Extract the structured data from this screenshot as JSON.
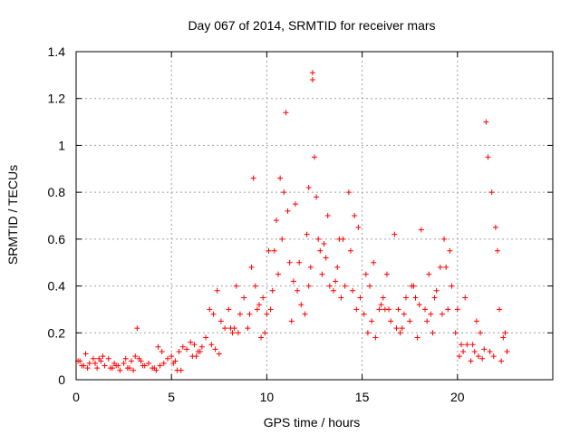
{
  "chart_data": {
    "type": "scatter",
    "title": "Day 067 of 2014, SRMTID for receiver mars",
    "xlabel": "GPS time / hours",
    "ylabel": "SRMTID / TECUs",
    "xlim": [
      0,
      25
    ],
    "ylim": [
      0,
      1.4
    ],
    "xticks": [
      0,
      5,
      10,
      15,
      20
    ],
    "yticks": [
      0,
      0.2,
      0.4,
      0.6,
      0.8,
      1,
      1.2,
      1.4
    ],
    "xtick_labels": [
      "0",
      "5",
      "10",
      "15",
      "20"
    ],
    "ytick_labels": [
      "0",
      "0.2",
      "0.4",
      "0.6",
      "0.8",
      "1",
      "1.2",
      "1.4"
    ],
    "grid": true,
    "marker": "+",
    "color": "#ff0000",
    "series": [
      {
        "name": "SRMTID",
        "x": [
          0.1,
          0.3,
          0.5,
          0.7,
          0.9,
          1.1,
          1.3,
          1.5,
          1.7,
          1.9,
          2.1,
          2.3,
          2.5,
          2.7,
          2.9,
          3.1,
          3.2,
          3.4,
          3.6,
          3.8,
          4.0,
          4.2,
          4.4,
          4.6,
          4.8,
          5.0,
          5.2,
          5.4,
          5.6,
          5.8,
          6.0,
          6.2,
          6.4,
          6.6,
          6.8,
          7.0,
          7.2,
          7.4,
          7.6,
          7.8,
          8.0,
          8.2,
          8.4,
          8.6,
          8.8,
          9.0,
          9.2,
          9.3,
          9.4,
          9.6,
          9.8,
          10.0,
          10.2,
          10.4,
          10.5,
          10.6,
          10.8,
          10.9,
          11.0,
          11.1,
          11.2,
          11.4,
          11.6,
          11.8,
          12.0,
          12.2,
          12.4,
          12.4,
          12.5,
          12.6,
          12.7,
          12.9,
          13.1,
          13.3,
          13.5,
          13.7,
          13.9,
          14.1,
          14.3,
          14.5,
          14.7,
          14.9,
          15.1,
          15.3,
          15.5,
          15.7,
          15.9,
          16.1,
          16.3,
          16.5,
          16.7,
          16.9,
          17.1,
          17.3,
          17.5,
          17.7,
          17.9,
          18.1,
          18.3,
          18.5,
          18.7,
          18.9,
          19.1,
          19.3,
          19.5,
          19.7,
          19.9,
          20.1,
          20.3,
          20.5,
          20.7,
          20.9,
          21.1,
          21.3,
          21.4,
          21.5,
          21.6,
          21.8,
          22.0,
          22.2,
          22.4,
          22.6,
          0.2,
          0.6,
          1.0,
          1.4,
          1.8,
          2.2,
          2.6,
          3.0,
          3.5,
          4.1,
          4.5,
          5.1,
          5.5,
          6.1,
          6.5,
          7.1,
          7.5,
          8.1,
          8.5,
          9.1,
          9.5,
          9.9,
          10.3,
          10.7,
          11.3,
          11.7,
          12.1,
          12.3,
          12.8,
          13.2,
          13.6,
          14.0,
          14.4,
          14.8,
          15.2,
          15.6,
          16.0,
          16.4,
          16.8,
          17.2,
          17.6,
          18.0,
          18.4,
          18.8,
          19.2,
          19.6,
          20.0,
          20.4,
          20.8,
          21.2,
          21.7,
          22.1,
          22.5,
          0.4,
          1.2,
          2.0,
          2.8,
          3.3,
          4.3,
          5.3,
          6.3,
          7.3,
          8.3,
          9.7,
          10.1,
          11.5,
          12.2,
          13.0,
          13.8,
          14.6,
          15.4,
          16.2,
          17.0,
          17.8,
          18.6,
          19.4,
          20.2,
          21.0,
          21.9,
          22.3
        ],
        "y": [
          0.08,
          0.06,
          0.11,
          0.07,
          0.09,
          0.05,
          0.08,
          0.06,
          0.09,
          0.05,
          0.06,
          0.04,
          0.07,
          0.05,
          0.08,
          0.1,
          0.22,
          0.08,
          0.06,
          0.07,
          0.05,
          0.04,
          0.06,
          0.07,
          0.09,
          0.1,
          0.08,
          0.12,
          0.14,
          0.13,
          0.16,
          0.15,
          0.12,
          0.14,
          0.18,
          0.3,
          0.28,
          0.38,
          0.25,
          0.22,
          0.3,
          0.2,
          0.4,
          0.28,
          0.35,
          0.22,
          0.48,
          0.86,
          0.4,
          0.32,
          0.35,
          0.28,
          0.3,
          0.55,
          0.68,
          0.45,
          0.6,
          0.8,
          1.14,
          0.72,
          0.5,
          0.42,
          0.38,
          0.32,
          0.28,
          0.4,
          1.31,
          1.28,
          0.95,
          0.78,
          0.6,
          0.45,
          0.52,
          0.4,
          0.38,
          0.48,
          0.35,
          0.4,
          0.8,
          0.38,
          0.3,
          0.35,
          0.28,
          0.2,
          0.25,
          0.18,
          0.3,
          0.35,
          0.45,
          0.25,
          0.62,
          0.3,
          0.22,
          0.35,
          0.25,
          0.4,
          0.18,
          0.64,
          0.3,
          0.45,
          0.2,
          0.38,
          0.48,
          0.6,
          0.3,
          0.4,
          0.2,
          0.1,
          0.12,
          0.15,
          0.08,
          0.12,
          0.1,
          0.09,
          0.13,
          1.1,
          0.95,
          0.8,
          0.65,
          0.3,
          0.18,
          0.12,
          0.08,
          0.05,
          0.07,
          0.1,
          0.05,
          0.06,
          0.09,
          0.04,
          0.06,
          0.05,
          0.12,
          0.07,
          0.04,
          0.1,
          0.12,
          0.15,
          0.11,
          0.22,
          0.2,
          0.28,
          0.3,
          0.2,
          0.38,
          0.86,
          0.25,
          0.5,
          0.62,
          0.48,
          0.55,
          0.7,
          0.42,
          0.6,
          0.55,
          0.65,
          0.45,
          0.5,
          0.32,
          0.3,
          0.22,
          0.28,
          0.4,
          0.32,
          0.25,
          0.35,
          0.28,
          0.55,
          0.3,
          0.35,
          0.15,
          0.2,
          0.12,
          0.55,
          0.2,
          0.06,
          0.09,
          0.07,
          0.05,
          0.09,
          0.14,
          0.04,
          0.1,
          0.13,
          0.22,
          0.18,
          0.55,
          0.75,
          0.82,
          0.58,
          0.6,
          0.7,
          0.4,
          0.3,
          0.2,
          0.35,
          0.28,
          0.48,
          0.15,
          0.25,
          0.1,
          0.08
        ]
      }
    ]
  }
}
